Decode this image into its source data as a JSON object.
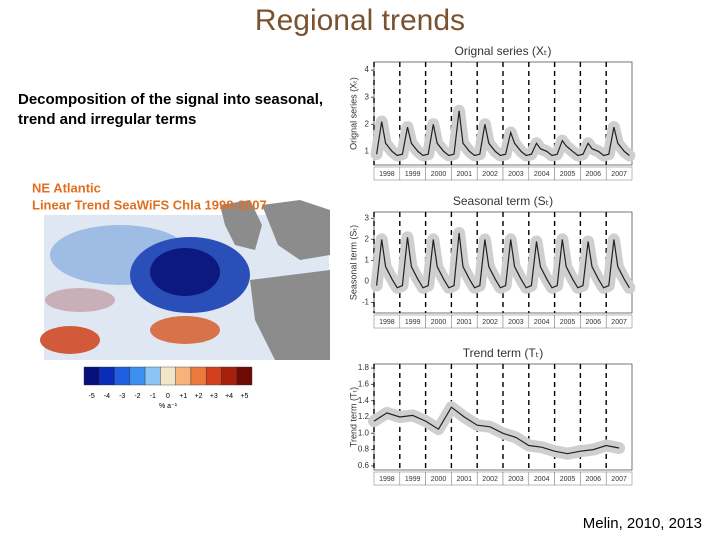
{
  "title": "Regional trends",
  "description": "Decomposition of the signal into seasonal, trend and irregular terms",
  "citation": "Melin, 2010, 2013",
  "map": {
    "title_line1": "NE Atlantic",
    "title_line2": "Linear Trend SeaWiFS Chla 1998-2007",
    "colorbar": {
      "labels": [
        "-5",
        "-4",
        "-3",
        "-2",
        "-1",
        "0",
        "+1",
        "+2",
        "+3",
        "+4",
        "+5"
      ],
      "colors": [
        "#08107a",
        "#0a2cb8",
        "#1f5fe0",
        "#3b8ff0",
        "#8cc4f4",
        "#f2e6c8",
        "#f6b27a",
        "#ec7a3c",
        "#d2401e",
        "#a6200e",
        "#6e0a06"
      ],
      "unit": "% a⁻¹"
    }
  },
  "panels": [
    {
      "type": "line",
      "title": "Orignal series (Xₜ)",
      "ylabel": "Orignal series (Xₜ)",
      "color": "#222222",
      "xlim": [
        1998,
        2008
      ],
      "xticks": [
        1998,
        1999,
        2000,
        2001,
        2002,
        2003,
        2004,
        2005,
        2006,
        2007
      ],
      "ylim": [
        0.5,
        4.3
      ],
      "yticks": [
        1,
        2,
        3,
        4
      ],
      "x": [
        1998.1,
        1998.3,
        1998.45,
        1998.7,
        1998.9,
        1999.1,
        1999.3,
        1999.45,
        1999.7,
        1999.9,
        2000.1,
        2000.3,
        2000.45,
        2000.7,
        2000.9,
        2001.1,
        2001.3,
        2001.45,
        2001.7,
        2001.9,
        2002.1,
        2002.3,
        2002.45,
        2002.7,
        2002.9,
        2003.1,
        2003.3,
        2003.45,
        2003.7,
        2003.9,
        2004.1,
        2004.3,
        2004.45,
        2004.7,
        2004.9,
        2005.1,
        2005.3,
        2005.45,
        2005.7,
        2005.9,
        2006.1,
        2006.3,
        2006.45,
        2006.7,
        2006.9,
        2007.1,
        2007.3,
        2007.45,
        2007.7,
        2007.9
      ],
      "values": [
        0.9,
        2.1,
        1.3,
        1.0,
        0.85,
        0.9,
        1.9,
        1.3,
        1.0,
        0.85,
        0.9,
        2.0,
        1.3,
        1.0,
        0.85,
        0.9,
        2.5,
        1.3,
        1.0,
        0.85,
        0.9,
        2.0,
        1.3,
        1.0,
        0.85,
        0.9,
        1.7,
        1.3,
        1.0,
        0.85,
        0.9,
        1.3,
        1.1,
        1.0,
        0.85,
        0.9,
        1.4,
        1.2,
        1.0,
        0.85,
        0.9,
        1.3,
        1.1,
        1.0,
        0.85,
        0.9,
        1.9,
        1.3,
        1.0,
        0.85
      ]
    },
    {
      "type": "line",
      "title": "Seasonal term (Sₜ)",
      "ylabel": "Seasonal term (Sₜ)",
      "color": "#222222",
      "xlim": [
        1998,
        2008
      ],
      "xticks": [
        1998,
        1999,
        2000,
        2001,
        2002,
        2003,
        2004,
        2005,
        2006,
        2007
      ],
      "ylim": [
        -1.5,
        3.3
      ],
      "yticks": [
        -1,
        0,
        1,
        2,
        3
      ],
      "x": [
        1998.1,
        1998.3,
        1998.45,
        1998.7,
        1998.9,
        1999.1,
        1999.3,
        1999.45,
        1999.7,
        1999.9,
        2000.1,
        2000.3,
        2000.45,
        2000.7,
        2000.9,
        2001.1,
        2001.3,
        2001.45,
        2001.7,
        2001.9,
        2002.1,
        2002.3,
        2002.45,
        2002.7,
        2002.9,
        2003.1,
        2003.3,
        2003.45,
        2003.7,
        2003.9,
        2004.1,
        2004.3,
        2004.45,
        2004.7,
        2004.9,
        2005.1,
        2005.3,
        2005.45,
        2005.7,
        2005.9,
        2006.1,
        2006.3,
        2006.45,
        2006.7,
        2006.9,
        2007.1,
        2007.3,
        2007.45,
        2007.7,
        2007.9
      ],
      "values": [
        -0.2,
        2.0,
        0.7,
        0.1,
        -0.3,
        -0.2,
        2.1,
        0.7,
        0.1,
        -0.3,
        -0.2,
        2.0,
        0.7,
        0.1,
        -0.3,
        -0.2,
        2.3,
        0.7,
        0.1,
        -0.3,
        -0.2,
        2.0,
        0.7,
        0.1,
        -0.3,
        -0.2,
        2.0,
        0.7,
        0.1,
        -0.3,
        -0.2,
        1.9,
        0.7,
        0.1,
        -0.3,
        -0.2,
        2.0,
        0.7,
        0.1,
        -0.3,
        -0.2,
        1.9,
        0.7,
        0.1,
        -0.3,
        -0.2,
        2.0,
        0.7,
        0.1,
        -0.3
      ]
    },
    {
      "type": "line",
      "title": "Trend term (Tₜ)",
      "ylabel": "Trend term (Tₜ)",
      "color": "#222222",
      "xlim": [
        1998,
        2008
      ],
      "xticks": [
        1998,
        1999,
        2000,
        2001,
        2002,
        2003,
        2004,
        2005,
        2006,
        2007
      ],
      "ylim": [
        0.55,
        1.85
      ],
      "yticks": [
        {
          "value": 0.6,
          "label": "0.6"
        },
        {
          "value": 0.8,
          "label": "0.8"
        },
        {
          "value": 1.0,
          "label": "1.0"
        },
        {
          "value": 1.2,
          "label": "1.2"
        },
        {
          "value": 1.4,
          "label": "1.4"
        },
        {
          "value": 1.6,
          "label": "1.6"
        },
        {
          "value": 1.8,
          "label": "1.8"
        }
      ],
      "x": [
        1998.0,
        1998.5,
        1999.0,
        1999.5,
        2000.0,
        2000.5,
        2001.0,
        2001.5,
        2002.0,
        2002.5,
        2003.0,
        2003.5,
        2004.0,
        2004.5,
        2005.0,
        2005.5,
        2006.0,
        2006.5,
        2007.0,
        2007.5
      ],
      "values": [
        1.15,
        1.25,
        1.2,
        1.22,
        1.15,
        1.05,
        1.32,
        1.2,
        1.1,
        1.08,
        1.0,
        0.95,
        0.85,
        0.83,
        0.78,
        0.75,
        0.78,
        0.8,
        0.85,
        0.82
      ]
    }
  ]
}
